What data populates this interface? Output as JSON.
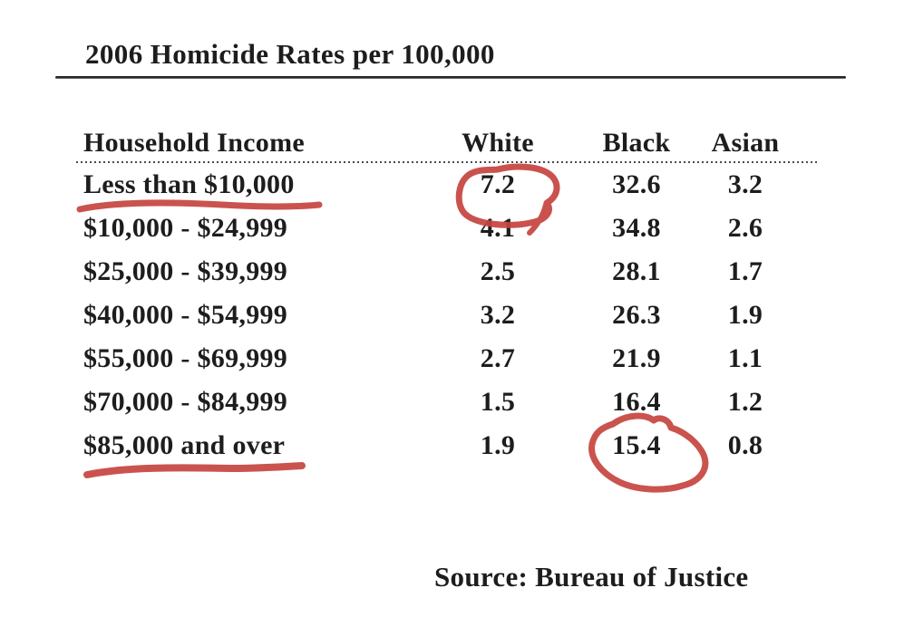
{
  "title": "2006 Homicide Rates per 100,000",
  "source": "Source: Bureau of Justice",
  "table": {
    "columns": {
      "income": "Household Income",
      "white": "White",
      "black": "Black",
      "asian": "Asian"
    },
    "rows": [
      {
        "income": "Less than $10,000",
        "white": "7.2",
        "black": "32.6",
        "asian": "3.2"
      },
      {
        "income": "$10,000 - $24,999",
        "white": "4.1",
        "black": "34.8",
        "asian": "2.6"
      },
      {
        "income": "$25,000 - $39,999",
        "white": "2.5",
        "black": "28.1",
        "asian": "1.7"
      },
      {
        "income": "$40,000 - $54,999",
        "white": "3.2",
        "black": "26.3",
        "asian": "1.9"
      },
      {
        "income": "$55,000 - $69,999",
        "white": "2.7",
        "black": "21.9",
        "asian": "1.1"
      },
      {
        "income": "$70,000 - $84,999",
        "white": "1.5",
        "black": "16.4",
        "asian": "1.2"
      },
      {
        "income": "$85,000 and over",
        "white": "1.9",
        "black": "15.4",
        "asian": "0.8"
      }
    ]
  },
  "annotations": {
    "marker_color": "#c6443f",
    "circled_values": [
      {
        "row": "Less than $10,000",
        "column": "White",
        "value": "7.2"
      },
      {
        "row": "$85,000 and over",
        "column": "Black",
        "value": "15.4"
      }
    ],
    "underlined_rows": [
      "Less than $10,000",
      "$85,000 and over"
    ]
  },
  "chart_data": {
    "type": "table",
    "title": "2006 Homicide Rates per 100,000",
    "columns": [
      "Household Income",
      "White",
      "Black",
      "Asian"
    ],
    "rows": [
      [
        "Less than $10,000",
        7.2,
        32.6,
        3.2
      ],
      [
        "$10,000 - $24,999",
        4.1,
        34.8,
        2.6
      ],
      [
        "$25,000 - $39,999",
        2.5,
        28.1,
        1.7
      ],
      [
        "$40,000 - $54,999",
        3.2,
        26.3,
        1.9
      ],
      [
        "$55,000 - $69,999",
        2.7,
        21.9,
        1.1
      ],
      [
        "$70,000 - $84,999",
        1.5,
        16.4,
        1.2
      ],
      [
        "$85,000 and over",
        1.9,
        15.4,
        0.8
      ]
    ],
    "source": "Source: Bureau of Justice",
    "annotations": {
      "circled": [
        {
          "row": "Less than $10,000",
          "column": "White",
          "value": 7.2
        },
        {
          "row": "$85,000 and over",
          "column": "Black",
          "value": 15.4
        }
      ],
      "underlined_rows": [
        "Less than $10,000",
        "$85,000 and over"
      ]
    }
  }
}
